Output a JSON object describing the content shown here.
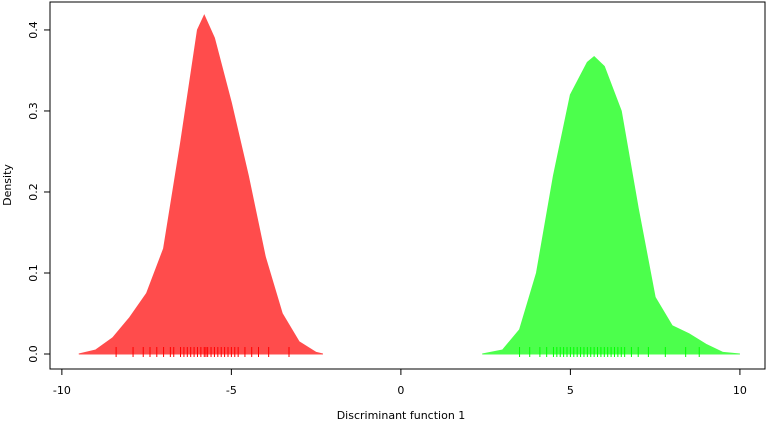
{
  "chart_data": {
    "type": "density",
    "xlabel": "Discriminant function 1",
    "ylabel": "Density",
    "xlim": [
      -10.35,
      10.74
    ],
    "ylim": [
      -0.0185,
      0.4345
    ],
    "xticks": [
      -10,
      -5,
      0,
      5,
      10
    ],
    "yticks": [
      {
        "value": 0,
        "label": "0.0"
      },
      0.1,
      0.2,
      0.3,
      0.4
    ],
    "series": [
      {
        "color": "#ff4c4c",
        "rug_color": "#ff0000",
        "x": [
          -9.5,
          -9,
          -8.5,
          -8,
          -7.5,
          -7,
          -6.5,
          -6,
          -5.8,
          -5.5,
          -5,
          -4.5,
          -4,
          -3.5,
          -3,
          -2.5,
          -2.3
        ],
        "values": [
          0.0,
          0.005,
          0.02,
          0.045,
          0.075,
          0.13,
          0.26,
          0.4,
          0.418,
          0.39,
          0.31,
          0.22,
          0.12,
          0.05,
          0.015,
          0.002,
          0.0
        ],
        "rug": [
          -8.4,
          -7.9,
          -7.6,
          -7.4,
          -7.2,
          -7.0,
          -6.8,
          -6.7,
          -6.5,
          -6.4,
          -6.3,
          -6.2,
          -6.1,
          -6.0,
          -5.9,
          -5.8,
          -5.75,
          -5.7,
          -5.6,
          -5.5,
          -5.4,
          -5.3,
          -5.2,
          -5.1,
          -5.0,
          -4.9,
          -4.8,
          -4.6,
          -4.4,
          -4.2,
          -3.9,
          -3.3
        ]
      },
      {
        "color": "#4cff4c",
        "rug_color": "#00ff00",
        "x": [
          2.4,
          3,
          3.5,
          4,
          4.5,
          5,
          5.5,
          5.7,
          6,
          6.5,
          7,
          7.5,
          8,
          8.5,
          9,
          9.5,
          10
        ],
        "values": [
          0.0,
          0.005,
          0.03,
          0.1,
          0.22,
          0.32,
          0.36,
          0.367,
          0.355,
          0.3,
          0.18,
          0.07,
          0.035,
          0.025,
          0.012,
          0.002,
          0.0
        ],
        "rug": [
          3.5,
          3.8,
          4.1,
          4.3,
          4.5,
          4.6,
          4.7,
          4.8,
          4.9,
          5.0,
          5.1,
          5.2,
          5.3,
          5.4,
          5.5,
          5.6,
          5.7,
          5.8,
          5.9,
          6.0,
          6.1,
          6.2,
          6.3,
          6.4,
          6.5,
          6.6,
          6.8,
          7.0,
          7.3,
          7.8,
          8.4,
          8.8
        ]
      }
    ]
  }
}
